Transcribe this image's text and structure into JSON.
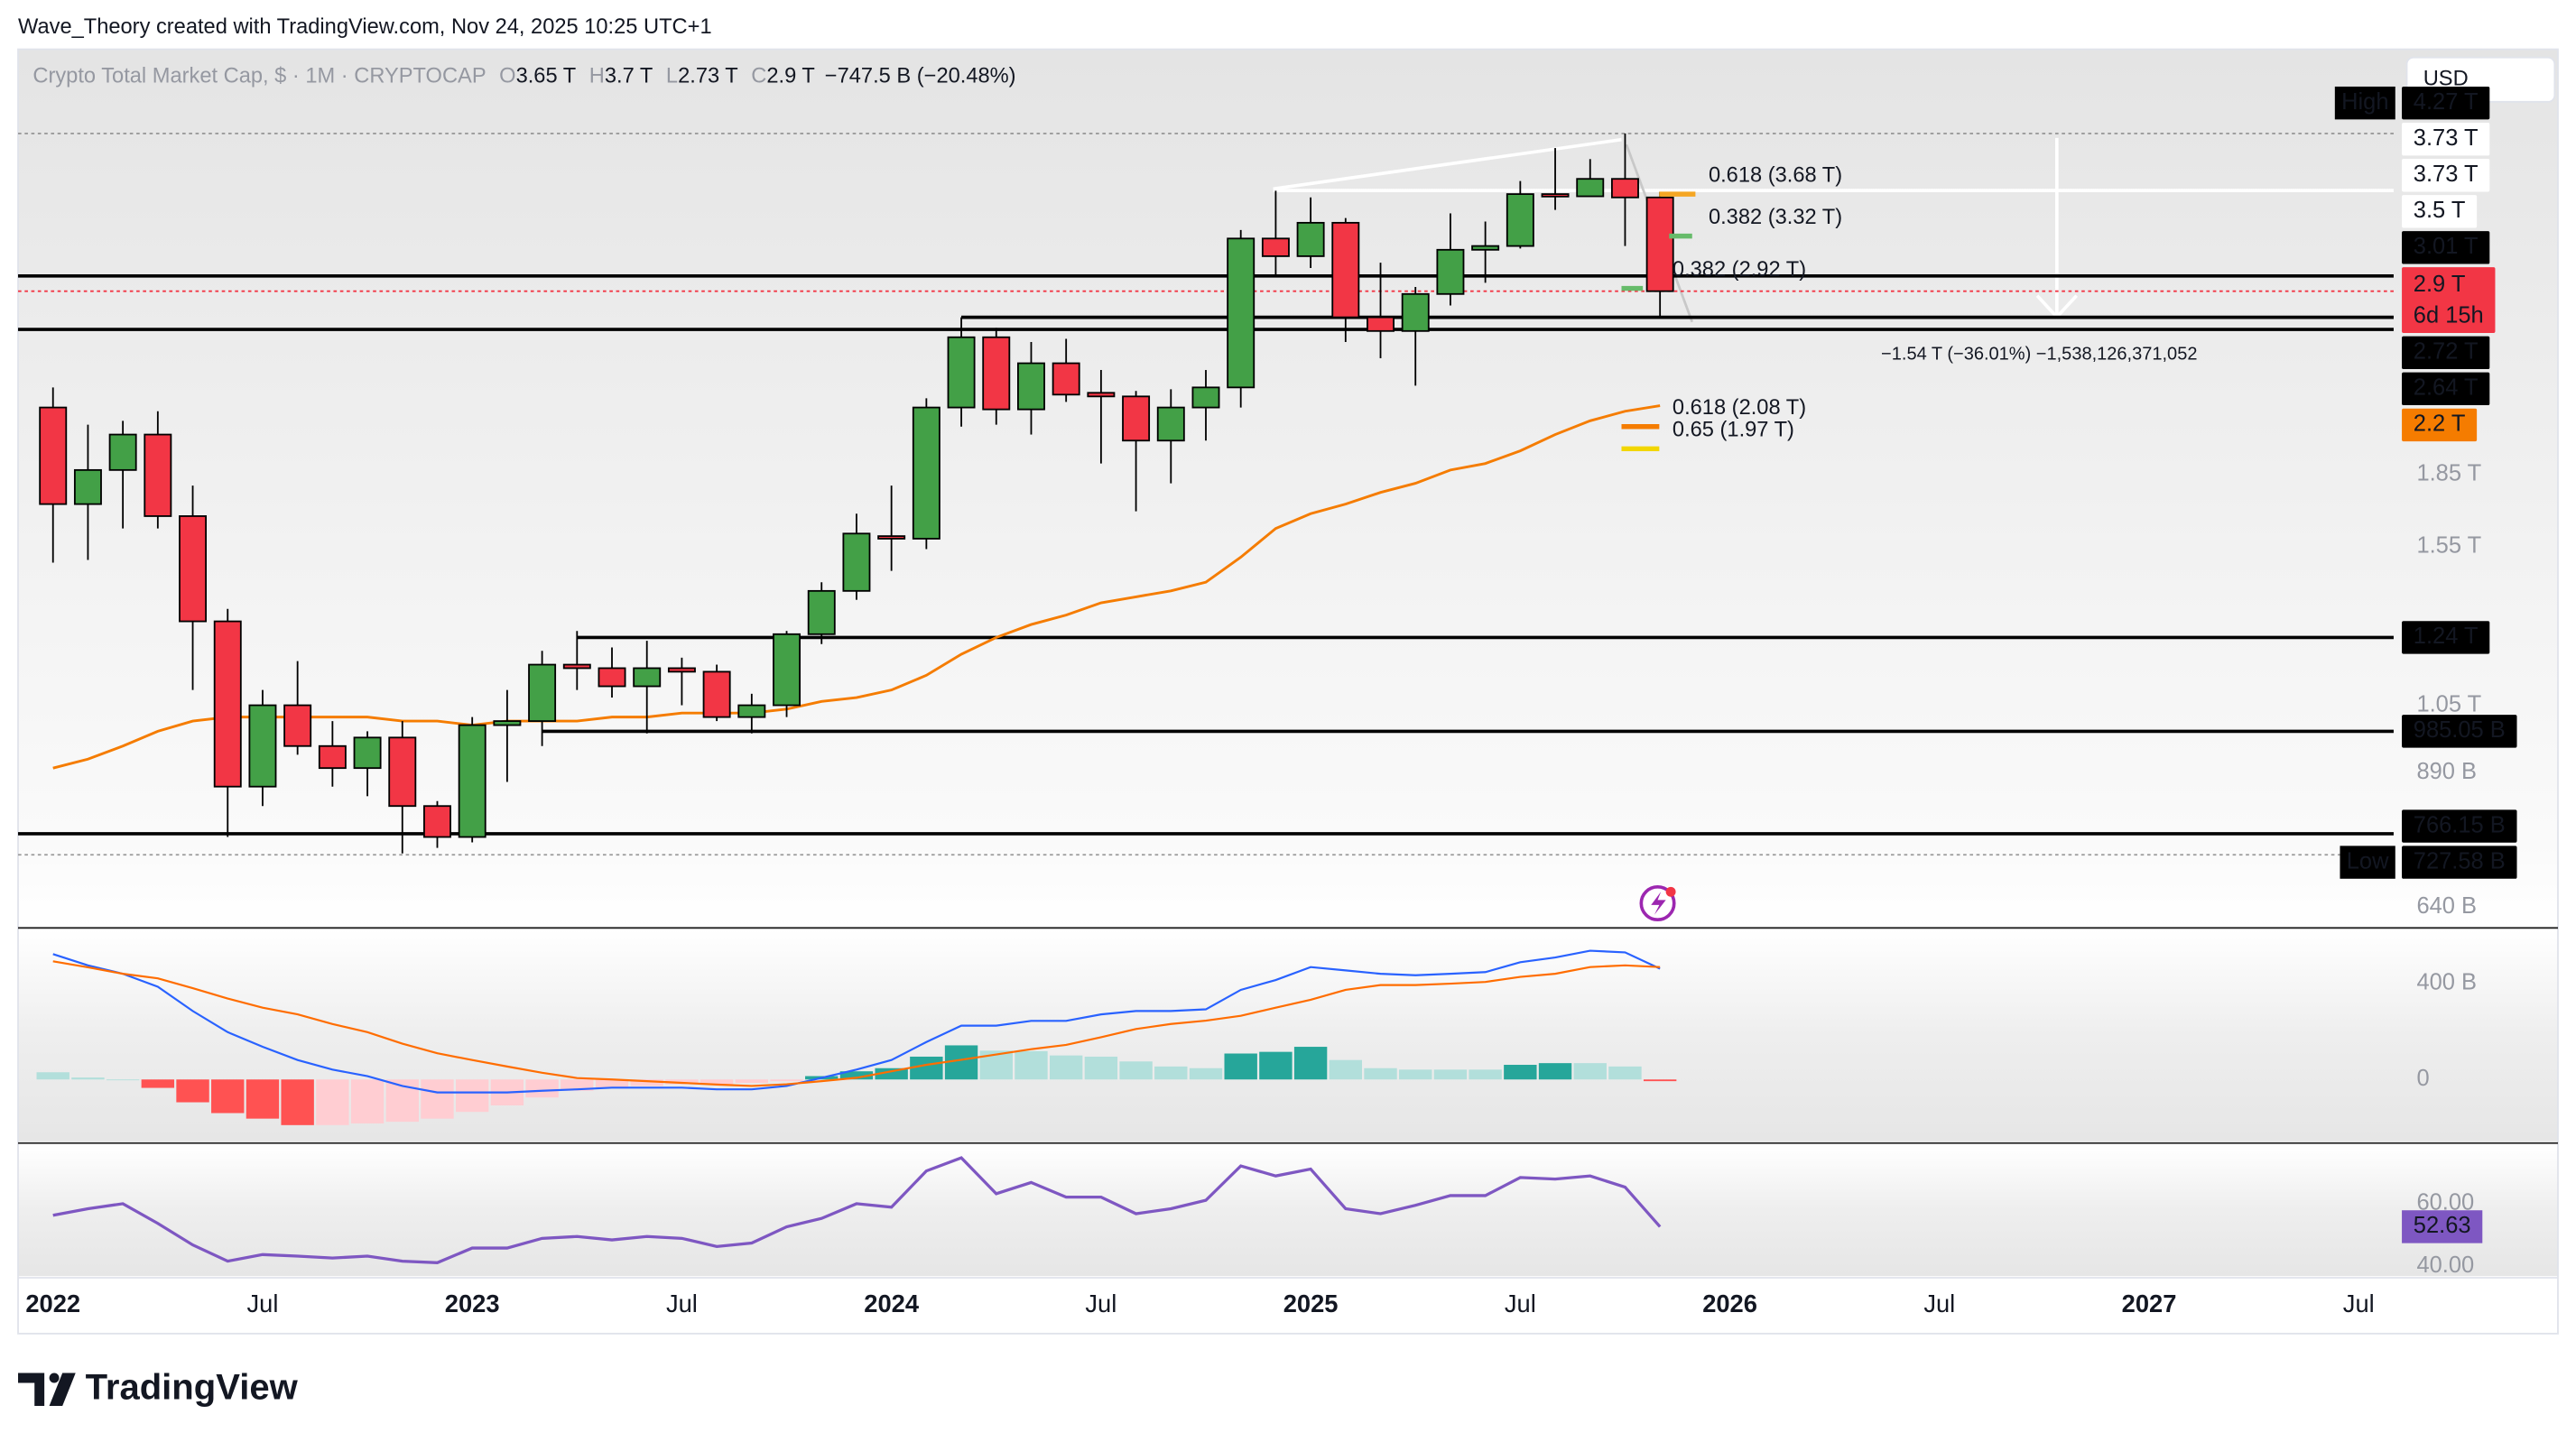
{
  "header": "Wave_Theory created with TradingView.com, Nov 24, 2025 10:25 UTC+1",
  "footer": "TradingView",
  "chart_data": {
    "type": "candlestick",
    "title": "Crypto Total Market Cap, $ · 1M · CRYPTOCAP",
    "legend": [
      {
        "key": "O",
        "label": "3.65 T"
      },
      {
        "key": "H",
        "label": "3.7 T"
      },
      {
        "key": "L",
        "label": "2.73 T"
      },
      {
        "key": "C",
        "label": "2.9 T"
      }
    ],
    "change": "−747.5 B (−20.48%)",
    "currency": "USD",
    "up_color": "#43a047",
    "down_color": "#f23645",
    "log_scale": true,
    "x": [
      "2022-01",
      "2022-02",
      "2022-03",
      "2022-04",
      "2022-05",
      "2022-06",
      "2022-07",
      "2022-08",
      "2022-09",
      "2022-10",
      "2022-11",
      "2022-12",
      "2023-01",
      "2023-02",
      "2023-03",
      "2023-04",
      "2023-05",
      "2023-06",
      "2023-07",
      "2023-08",
      "2023-09",
      "2023-10",
      "2023-11",
      "2023-12",
      "2024-01",
      "2024-02",
      "2024-03",
      "2024-04",
      "2024-05",
      "2024-06",
      "2024-07",
      "2024-08",
      "2024-09",
      "2024-10",
      "2024-11",
      "2024-12",
      "2025-01",
      "2025-02",
      "2025-03",
      "2025-04",
      "2025-05",
      "2025-06",
      "2025-07",
      "2025-08",
      "2025-09",
      "2025-10",
      "2025-11"
    ],
    "open": [
      2.18,
      1.72,
      1.87,
      2.04,
      1.67,
      1.29,
      0.86,
      1.05,
      0.95,
      0.9,
      0.97,
      0.82,
      0.76,
      1.0,
      1.01,
      1.16,
      1.15,
      1.1,
      1.15,
      1.14,
      1.02,
      1.05,
      1.25,
      1.39,
      1.59,
      1.58,
      2.18,
      2.59,
      2.17,
      2.43,
      2.26,
      2.24,
      2.01,
      2.18,
      2.29,
      3.3,
      3.16,
      3.43,
      2.72,
      2.63,
      2.88,
      3.21,
      3.24,
      3.68,
      3.66,
      3.82,
      3.65
    ],
    "high": [
      2.29,
      2.09,
      2.11,
      2.16,
      1.8,
      1.33,
      1.09,
      1.17,
      1.01,
      0.985,
      1.01,
      0.83,
      1.02,
      1.09,
      1.2,
      1.26,
      1.21,
      1.23,
      1.18,
      1.16,
      1.08,
      1.26,
      1.42,
      1.68,
      1.8,
      2.23,
      2.72,
      2.65,
      2.56,
      2.58,
      2.39,
      2.27,
      2.28,
      2.39,
      3.37,
      3.71,
      3.65,
      3.47,
      3.11,
      2.93,
      3.51,
      3.44,
      3.8,
      4.12,
      4.01,
      4.27,
      3.7
    ],
    "low": [
      1.49,
      1.5,
      1.62,
      1.62,
      1.09,
      0.76,
      0.82,
      0.93,
      0.86,
      0.84,
      0.73,
      0.74,
      0.75,
      0.87,
      0.95,
      1.09,
      1.07,
      0.98,
      1.05,
      1.01,
      0.98,
      1.02,
      1.22,
      1.36,
      1.46,
      1.54,
      2.08,
      2.09,
      2.04,
      2.21,
      1.9,
      1.69,
      1.81,
      2.01,
      2.18,
      3.01,
      3.07,
      2.56,
      2.46,
      2.3,
      2.8,
      2.96,
      3.22,
      3.54,
      3.66,
      3.24,
      2.73
    ],
    "close": [
      1.72,
      1.87,
      2.04,
      1.67,
      1.29,
      0.86,
      1.05,
      0.95,
      0.9,
      0.97,
      0.82,
      0.76,
      1.0,
      1.01,
      1.16,
      1.15,
      1.1,
      1.15,
      1.14,
      1.02,
      1.05,
      1.25,
      1.39,
      1.6,
      1.58,
      2.18,
      2.59,
      2.17,
      2.43,
      2.25,
      2.24,
      2.01,
      2.18,
      2.29,
      3.3,
      3.16,
      3.43,
      2.72,
      2.63,
      2.88,
      3.21,
      3.24,
      3.68,
      3.66,
      3.82,
      3.65,
      2.9
    ],
    "xlim": [
      "2021-12",
      "2027-08"
    ],
    "xticks": [
      {
        "value": "2022-01",
        "label": "2022"
      },
      {
        "value": "2022-07",
        "label": "Jul"
      },
      {
        "value": "2023-01",
        "label": "2023"
      },
      {
        "value": "2023-07",
        "label": "Jul"
      },
      {
        "value": "2024-01",
        "label": "2024"
      },
      {
        "value": "2024-07",
        "label": "Jul"
      },
      {
        "value": "2025-01",
        "label": "2025"
      },
      {
        "value": "2025-07",
        "label": "Jul"
      },
      {
        "value": "2026-01",
        "label": "2026"
      },
      {
        "value": "2026-07",
        "label": "Jul"
      },
      {
        "value": "2027-01",
        "label": "2027"
      },
      {
        "value": "2027-07",
        "label": "Jul"
      }
    ],
    "ylim": [
      0.608,
      5.25
    ],
    "yticks": [
      {
        "value": 1.85,
        "label": "1.85 T"
      },
      {
        "value": 1.55,
        "label": "1.55 T"
      },
      {
        "value": 1.05,
        "label": "1.05 T"
      },
      {
        "value": 0.89,
        "label": "890 B"
      },
      {
        "value": 0.64,
        "label": "640 B"
      }
    ],
    "price_labels": [
      {
        "value": 4.27,
        "label": "4.27 T",
        "tag": "High",
        "background": "#000000",
        "color": "#ffffff"
      },
      {
        "value": 3.73,
        "label": "3.73 T",
        "background": "#ffffff",
        "color": "#131722"
      },
      {
        "value": 3.73,
        "label": "3.73 T",
        "background": "#ffffff",
        "color": "#131722"
      },
      {
        "value": 3.5,
        "label": "3.5 T",
        "background": "#ffffff",
        "color": "#131722"
      },
      {
        "value": 3.01,
        "label": "3.01 T",
        "background": "#000000",
        "color": "#ffffff"
      },
      {
        "value": 2.9,
        "label": "2.9 T",
        "sub": "6d 15h",
        "background": "#f23645",
        "color": "#ffffff"
      },
      {
        "value": 2.72,
        "label": "2.72 T",
        "background": "#000000",
        "color": "#ffffff"
      },
      {
        "value": 2.64,
        "label": "2.64 T",
        "background": "#000000",
        "color": "#ffffff"
      },
      {
        "value": 2.2,
        "label": "2.2 T",
        "background": "#f57c00",
        "color": "#ffffff"
      },
      {
        "value": 1.24,
        "label": "1.24 T",
        "background": "#000000",
        "color": "#ffffff"
      },
      {
        "value": 0.98505,
        "label": "985.05 B",
        "background": "#000000",
        "color": "#ffffff"
      },
      {
        "value": 0.76615,
        "label": "766.15 B",
        "background": "#000000",
        "color": "#ffffff"
      },
      {
        "value": 0.72758,
        "label": "727.58 B",
        "tag": "Low",
        "background": "#000000",
        "color": "#ffffff"
      }
    ],
    "levels": [
      {
        "value": 3.01,
        "start": "2021-12"
      },
      {
        "value": 2.72,
        "start": "2024-03"
      },
      {
        "value": 2.64,
        "start": "2021-12"
      },
      {
        "value": 1.24,
        "start": "2023-04"
      },
      {
        "value": 0.98505,
        "start": "2023-03"
      },
      {
        "value": 0.76615,
        "start": "2021-12"
      }
    ],
    "dotted_levels": [
      {
        "value": 4.27,
        "color": "#9a9a9a"
      },
      {
        "value": 2.9,
        "color": "#f23645"
      },
      {
        "value": 0.72758,
        "color": "#9a9a9a"
      }
    ],
    "fib_labels": [
      {
        "label": "0.618 (3.68 T)",
        "value": 3.68,
        "color": "#f5a623"
      },
      {
        "label": "0.382 (3.32 T)",
        "value": 3.32,
        "color": "#66bb6a"
      },
      {
        "label": "0.382 (2.92 T)",
        "value": 2.92,
        "color": "#66bb6a"
      },
      {
        "label": "0.618 (2.08 T)",
        "value": 2.08,
        "color": "#f57c00"
      },
      {
        "label": "0.65 (1.97 T)",
        "value": 1.97,
        "color": "#f2d600"
      }
    ],
    "measure": "−1.54 T (−36.01%) −1,538,126,371,052",
    "ema": {
      "color": "#f57c00",
      "values": [
        0.9,
        0.92,
        0.95,
        0.985,
        1.01,
        1.02,
        1.02,
        1.02,
        1.02,
        1.02,
        1.01,
        1.01,
        1.0,
        1.01,
        1.01,
        1.01,
        1.02,
        1.02,
        1.03,
        1.03,
        1.03,
        1.04,
        1.06,
        1.07,
        1.09,
        1.13,
        1.19,
        1.24,
        1.28,
        1.31,
        1.35,
        1.37,
        1.39,
        1.42,
        1.51,
        1.62,
        1.68,
        1.72,
        1.77,
        1.81,
        1.87,
        1.9,
        1.96,
        2.04,
        2.11,
        2.16,
        2.19
      ]
    },
    "macd": {
      "ylim": [
        -258,
        624
      ],
      "yticks": [
        {
          "value": 400,
          "label": "400 B"
        },
        0
      ],
      "histogram": [
        30,
        8,
        0,
        -35,
        -95,
        -140,
        -163,
        -190,
        -190,
        -183,
        -176,
        -163,
        -135,
        -108,
        -75,
        -47,
        -34,
        -27,
        -20,
        -20,
        -14,
        -7,
        14,
        34,
        47,
        95,
        142,
        120,
        118,
        100,
        95,
        75,
        54,
        47,
        108,
        115,
        136,
        81,
        47,
        41,
        41,
        41,
        61,
        68,
        68,
        54,
        -7
      ],
      "hist_colors": {
        "up_strong": "#26a69a",
        "up_weak": "#b2dfdb",
        "down_strong": "#ff5252",
        "down_weak": "#ffcdd2"
      },
      "series": [
        {
          "name": "MACD",
          "color": "#2962ff",
          "values": [
            522,
            475,
            440,
            386,
            285,
            197,
            136,
            81,
            41,
            14,
            -27,
            -54,
            -54,
            -54,
            -47,
            -41,
            -34,
            -34,
            -34,
            -41,
            -41,
            -27,
            7,
            41,
            81,
            156,
            224,
            224,
            244,
            244,
            271,
            285,
            285,
            292,
            373,
            414,
            468,
            454,
            440,
            434,
            440,
            447,
            488,
            508,
            536,
            529,
            461
          ]
        },
        {
          "name": "Signal",
          "color": "#ff6d00",
          "values": [
            492,
            467,
            440,
            421,
            380,
            337,
            299,
            271,
            231,
            197,
            149,
            109,
            81,
            54,
            28,
            6,
            0,
            -7,
            -14,
            -21,
            -27,
            -20,
            -7,
            7,
            34,
            61,
            82,
            104,
            126,
            144,
            176,
            210,
            231,
            245,
            265,
            299,
            332,
            373,
            393,
            393,
            399,
            406,
            427,
            440,
            468,
            475,
            468
          ]
        }
      ]
    },
    "rsi": {
      "color": "#7e57c2",
      "ylim": [
        36.8,
        78.9
      ],
      "yticks": [
        {
          "value": 60,
          "label": "60.00"
        },
        {
          "value": 40,
          "label": "40.00"
        }
      ],
      "values": [
        56.3,
        58.4,
        60,
        53.7,
        46.8,
        41.6,
        43.7,
        43.2,
        42.6,
        43.2,
        41.6,
        41.1,
        45.8,
        45.8,
        48.9,
        49.5,
        48.4,
        49.5,
        48.9,
        46.3,
        47.4,
        52.6,
        55.3,
        60,
        58.9,
        70.5,
        74.7,
        63.2,
        66.8,
        62.1,
        62.1,
        56.8,
        58.4,
        61.1,
        72.1,
        68.9,
        71.1,
        58.4,
        56.8,
        59.5,
        62.6,
        62.6,
        68.4,
        67.9,
        68.9,
        65.3,
        52.63
      ]
    }
  }
}
